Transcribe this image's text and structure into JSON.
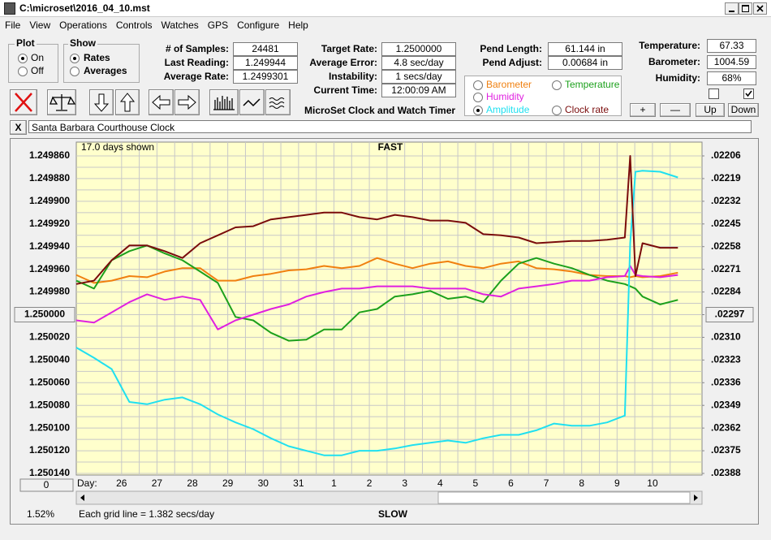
{
  "window": {
    "title": "C:\\microset\\2016_04_10.mst"
  },
  "menu": [
    "File",
    "View",
    "Operations",
    "Controls",
    "Watches",
    "GPS",
    "Configure",
    "Help"
  ],
  "plot_group": {
    "title": "Plot",
    "options": [
      "On",
      "Off"
    ]
  },
  "show_group": {
    "title": "Show",
    "options": [
      "Rates",
      "Averages"
    ]
  },
  "samples": [
    {
      "label": "# of Samples:",
      "value": "24481"
    },
    {
      "label": "Last Reading:",
      "value": "1.249944"
    },
    {
      "label": "Average Rate:",
      "value": "1.2499301"
    }
  ],
  "timing": [
    {
      "label": "Target Rate:",
      "value": "1.2500000"
    },
    {
      "label": "Average Error:",
      "value": "4.8 sec/day"
    },
    {
      "label": "Instability:",
      "value": "1 secs/day"
    },
    {
      "label": "Current Time:",
      "value": "12:00:09 AM"
    }
  ],
  "pendulum": [
    {
      "label": "Pend Length:",
      "value": "61.144 in"
    },
    {
      "label": "Pend Adjust:",
      "value": "0.00684 in"
    }
  ],
  "environment": [
    {
      "label": "Temperature:",
      "value": "67.33"
    },
    {
      "label": "Barometer:",
      "value": "1004.59"
    },
    {
      "label": "Humidity:",
      "value": "68%"
    }
  ],
  "app_title": "MicroSet Clock and Watch Timer",
  "adjust_buttons": [
    "+",
    "—",
    "Up",
    "Down"
  ],
  "close_button": "X",
  "clock_name": "Santa Barbara Courthouse Clock",
  "chart_data": {
    "type": "line",
    "title": "FAST",
    "bottom_label": "SLOW",
    "days_shown": "17.0 days shown",
    "x_label": "Day:",
    "grid_note": "Each grid line = 1.382 secs/day",
    "percent": "1.52%",
    "offset_button": "0",
    "grid": true,
    "xlim": [
      0,
      17.68
    ],
    "xticks": [
      {
        "value": 1.28,
        "label": "26"
      },
      {
        "value": 2.28,
        "label": "27"
      },
      {
        "value": 3.28,
        "label": "28"
      },
      {
        "value": 4.28,
        "label": "29"
      },
      {
        "value": 5.28,
        "label": "30"
      },
      {
        "value": 6.28,
        "label": "31"
      },
      {
        "value": 7.28,
        "label": "1"
      },
      {
        "value": 8.28,
        "label": "2"
      },
      {
        "value": 9.28,
        "label": "3"
      },
      {
        "value": 10.28,
        "label": "4"
      },
      {
        "value": 11.28,
        "label": "5"
      },
      {
        "value": 12.28,
        "label": "6"
      },
      {
        "value": 13.28,
        "label": "7"
      },
      {
        "value": 14.28,
        "label": "8"
      },
      {
        "value": 15.28,
        "label": "9"
      },
      {
        "value": 16.28,
        "label": "10"
      }
    ],
    "ylim": [
      1.25014,
      1.24986
    ],
    "yticks": [
      {
        "value": 1.24986,
        "label": "1.249860"
      },
      {
        "value": 1.24988,
        "label": "1.249880"
      },
      {
        "value": 1.2499,
        "label": "1.249900"
      },
      {
        "value": 1.24992,
        "label": "1.249920"
      },
      {
        "value": 1.24994,
        "label": "1.249940"
      },
      {
        "value": 1.24996,
        "label": "1.249960"
      },
      {
        "value": 1.24998,
        "label": "1.249980"
      },
      {
        "value": 1.25,
        "label": "1.250000"
      },
      {
        "value": 1.25002,
        "label": "1.250020"
      },
      {
        "value": 1.25004,
        "label": "1.250040"
      },
      {
        "value": 1.25006,
        "label": "1.250060"
      },
      {
        "value": 1.25008,
        "label": "1.250080"
      },
      {
        "value": 1.2501,
        "label": "1.250100"
      },
      {
        "value": 1.25012,
        "label": "1.250120"
      },
      {
        "value": 1.25014,
        "label": "1.250140"
      }
    ],
    "y2lim": [
      0.02388,
      0.02206
    ],
    "y2ticks": [
      {
        "value": 0.02206,
        "label": ".02206"
      },
      {
        "value": 0.02219,
        "label": ".02219"
      },
      {
        "value": 0.02232,
        "label": ".02232"
      },
      {
        "value": 0.02245,
        "label": ".02245"
      },
      {
        "value": 0.02258,
        "label": ".02258"
      },
      {
        "value": 0.02271,
        "label": ".02271"
      },
      {
        "value": 0.02284,
        "label": ".02284"
      },
      {
        "value": 0.02297,
        "label": ".02297"
      },
      {
        "value": 0.0231,
        "label": ".02310"
      },
      {
        "value": 0.02323,
        "label": ".02323"
      },
      {
        "value": 0.02336,
        "label": ".02336"
      },
      {
        "value": 0.02349,
        "label": ".02349"
      },
      {
        "value": 0.02362,
        "label": ".02362"
      },
      {
        "value": 0.02375,
        "label": ".02375"
      },
      {
        "value": 0.02388,
        "label": ".02388"
      }
    ],
    "x": [
      0,
      0.5,
      1,
      1.5,
      2,
      2.5,
      3,
      3.5,
      4,
      4.5,
      5,
      5.5,
      6,
      6.5,
      7,
      7.5,
      8,
      8.5,
      9,
      9.5,
      10,
      10.5,
      11,
      11.5,
      12,
      12.5,
      13,
      13.5,
      14,
      14.5,
      15,
      15.5,
      15.65,
      15.8,
      16,
      16.5,
      17
    ],
    "series": [
      {
        "name": "Barometer",
        "color": "#f08010",
        "values": [
          1.249965,
          1.249972,
          1.24997,
          1.249966,
          1.249967,
          1.249962,
          1.249959,
          1.249959,
          1.24997,
          1.24997,
          1.249966,
          1.249964,
          1.249961,
          1.24996,
          1.249957,
          1.249959,
          1.249957,
          1.24995,
          1.249955,
          1.249959,
          1.249955,
          1.249953,
          1.249957,
          1.249959,
          1.249955,
          1.249953,
          1.249959,
          1.24996,
          1.249962,
          1.249965,
          1.249966,
          1.249966,
          1.249967,
          1.249966,
          1.249967,
          1.249966,
          1.249963
        ]
      },
      {
        "name": "Temperature",
        "color": "#1ca01c",
        "values": [
          1.24997,
          1.249977,
          1.249952,
          1.249944,
          1.249939,
          1.249946,
          1.249952,
          1.249962,
          1.249972,
          1.250002,
          1.250005,
          1.250016,
          1.250023,
          1.250022,
          1.250013,
          1.250013,
          1.249998,
          1.249995,
          1.249984,
          1.249982,
          1.249979,
          1.249986,
          1.249984,
          1.249989,
          1.24997,
          1.249955,
          1.24995,
          1.249955,
          1.249959,
          1.249965,
          1.24997,
          1.249973,
          1.249975,
          1.249977,
          1.249984,
          1.249991,
          1.249987
        ]
      },
      {
        "name": "Humidity",
        "color": "#e020e0",
        "values": [
          1.250005,
          1.250007,
          1.249998,
          1.249989,
          1.249982,
          1.249987,
          1.249984,
          1.249987,
          1.250013,
          1.250005,
          1.25,
          1.249995,
          1.249991,
          1.249984,
          1.24998,
          1.249977,
          1.249977,
          1.249975,
          1.249975,
          1.249975,
          1.249977,
          1.249977,
          1.249977,
          1.249982,
          1.249984,
          1.249977,
          1.249975,
          1.249973,
          1.24997,
          1.24997,
          1.249967,
          1.249966,
          1.249957,
          1.249965,
          1.249966,
          1.249967,
          1.249965
        ]
      },
      {
        "name": "Amplitude",
        "color": "#20e0f0",
        "values": [
          1.250029,
          1.250038,
          1.250048,
          1.250077,
          1.250079,
          1.250075,
          1.250073,
          1.250079,
          1.250088,
          1.250095,
          1.250101,
          1.250109,
          1.250116,
          1.25012,
          1.250124,
          1.250124,
          1.25012,
          1.25012,
          1.250118,
          1.250115,
          1.250113,
          1.250111,
          1.250113,
          1.250109,
          1.250106,
          1.250106,
          1.250102,
          1.250096,
          1.250098,
          1.250098,
          1.250095,
          1.250089,
          1.249937,
          1.249874,
          1.249873,
          1.249874,
          1.249879
        ]
      },
      {
        "name": "Clock rate",
        "color": "#7a0c0c",
        "values": [
          1.249973,
          1.24997,
          1.249952,
          1.249939,
          1.249939,
          1.249944,
          1.24995,
          1.249937,
          1.24993,
          1.249923,
          1.249922,
          1.249916,
          1.249914,
          1.249912,
          1.24991,
          1.24991,
          1.249914,
          1.249916,
          1.249912,
          1.249914,
          1.249917,
          1.249917,
          1.249919,
          1.249929,
          1.24993,
          1.249932,
          1.249937,
          1.249936,
          1.249935,
          1.249935,
          1.249934,
          1.249932,
          1.24986,
          1.249966,
          1.249937,
          1.249941,
          1.249941
        ]
      }
    ]
  }
}
